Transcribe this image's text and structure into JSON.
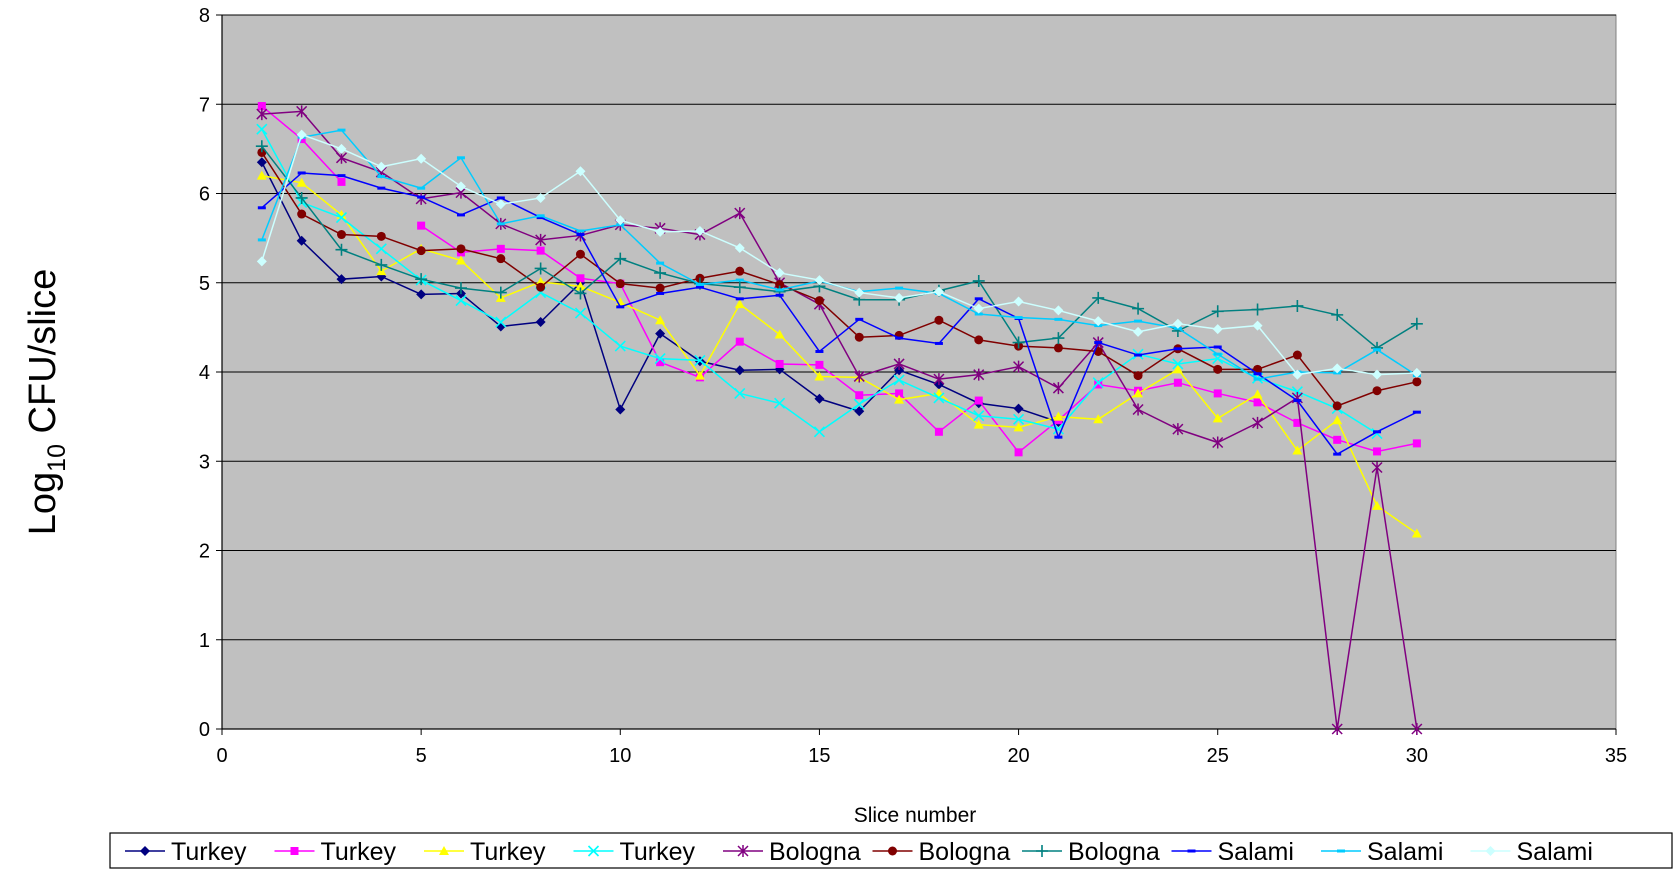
{
  "chart_data": {
    "type": "line",
    "title": "",
    "xlabel": "Slice number",
    "ylabel": {
      "base": "Log",
      "subscript": "10",
      "rest": " CFU/slice"
    },
    "xlim": [
      0,
      35
    ],
    "ylim": [
      0,
      8
    ],
    "x_ticks": [
      0,
      5,
      10,
      15,
      20,
      25,
      30,
      35
    ],
    "y_ticks": [
      0,
      1,
      2,
      3,
      4,
      5,
      6,
      7,
      8
    ],
    "grid": "horizontal",
    "plot_background": "#C0C0C0",
    "legend_position": "bottom",
    "x": [
      1,
      2,
      3,
      4,
      5,
      6,
      7,
      8,
      9,
      10,
      11,
      12,
      13,
      14,
      15,
      16,
      17,
      18,
      19,
      20,
      21,
      22,
      23,
      24,
      25,
      26,
      27,
      28,
      29,
      30
    ],
    "series": [
      {
        "name": "Turkey",
        "color": "#000080",
        "marker": "diamond",
        "values": [
          6.35,
          5.47,
          5.04,
          5.07,
          4.87,
          4.88,
          4.51,
          4.56,
          5.0,
          3.58,
          4.43,
          4.12,
          4.02,
          4.03,
          3.7,
          3.56,
          4.02,
          3.86,
          3.65,
          3.59,
          3.44,
          null,
          null,
          null,
          null,
          null,
          null,
          null,
          null,
          null
        ]
      },
      {
        "name": "Turkey",
        "color": "#FF00FF",
        "marker": "square",
        "values": [
          6.98,
          6.61,
          6.13,
          null,
          5.64,
          5.34,
          5.38,
          5.36,
          5.05,
          4.99,
          4.11,
          3.94,
          4.34,
          4.09,
          4.08,
          3.74,
          3.76,
          3.33,
          3.68,
          3.1,
          3.46,
          3.86,
          3.79,
          3.88,
          3.76,
          3.66,
          3.43,
          3.24,
          3.11,
          3.2
        ]
      },
      {
        "name": "Turkey",
        "color": "#FFFF00",
        "marker": "triangle",
        "values": [
          6.2,
          6.12,
          5.76,
          5.13,
          5.38,
          5.25,
          4.83,
          5.01,
          4.96,
          4.78,
          4.58,
          3.96,
          4.76,
          4.42,
          3.95,
          3.94,
          3.69,
          3.76,
          3.41,
          3.38,
          3.5,
          3.47,
          3.76,
          4.03,
          3.48,
          3.75,
          3.12,
          3.46,
          2.5,
          2.19
        ]
      },
      {
        "name": "Turkey",
        "color": "#00FFFF",
        "marker": "x",
        "values": [
          6.72,
          5.9,
          5.73,
          5.38,
          5.03,
          4.8,
          4.56,
          4.89,
          4.66,
          4.29,
          4.15,
          4.13,
          3.76,
          3.65,
          3.33,
          3.64,
          3.91,
          3.71,
          3.51,
          3.47,
          3.36,
          3.88,
          4.2,
          4.09,
          4.15,
          3.93,
          3.78,
          3.59,
          3.31,
          null
        ]
      },
      {
        "name": "Bologna",
        "color": "#800080",
        "marker": "star",
        "values": [
          6.89,
          6.92,
          6.4,
          6.24,
          5.94,
          6.01,
          5.66,
          5.48,
          5.53,
          5.65,
          5.61,
          5.54,
          5.78,
          5.0,
          4.76,
          3.95,
          4.09,
          3.92,
          3.97,
          4.06,
          3.82,
          4.33,
          3.58,
          3.36,
          3.21,
          3.43,
          3.71,
          0.0,
          2.93,
          0.0
        ]
      },
      {
        "name": "Bologna",
        "color": "#800000",
        "marker": "circle",
        "values": [
          6.46,
          5.77,
          5.54,
          5.52,
          5.36,
          5.38,
          5.27,
          4.95,
          5.32,
          4.99,
          4.94,
          5.05,
          5.13,
          4.98,
          4.8,
          4.39,
          4.41,
          4.58,
          4.36,
          4.29,
          4.27,
          4.23,
          3.96,
          4.26,
          4.03,
          4.03,
          4.19,
          3.62,
          3.79,
          3.89
        ]
      },
      {
        "name": "Bologna",
        "color": "#008080",
        "marker": "plus",
        "values": [
          6.53,
          5.95,
          5.37,
          5.2,
          5.04,
          4.94,
          4.89,
          5.16,
          4.88,
          5.27,
          5.11,
          4.99,
          4.95,
          4.9,
          4.96,
          4.81,
          4.81,
          4.91,
          5.02,
          4.33,
          4.38,
          4.83,
          4.71,
          4.46,
          4.68,
          4.7,
          4.74,
          4.64,
          4.27,
          4.54
        ]
      },
      {
        "name": "Salami",
        "color": "#0000FF",
        "marker": "dash",
        "values": [
          5.84,
          6.23,
          6.2,
          6.06,
          5.96,
          5.76,
          5.95,
          5.73,
          5.54,
          4.73,
          4.88,
          4.95,
          4.82,
          4.86,
          4.23,
          4.59,
          4.38,
          4.32,
          4.82,
          4.6,
          3.27,
          4.33,
          4.19,
          4.26,
          4.28,
          3.98,
          3.68,
          3.08,
          3.33,
          3.55
        ]
      },
      {
        "name": "Salami",
        "color": "#00CCFF",
        "marker": "dash",
        "values": [
          5.48,
          6.63,
          6.71,
          6.19,
          6.06,
          6.4,
          5.66,
          5.75,
          5.58,
          5.65,
          5.22,
          4.98,
          5.03,
          4.92,
          5.02,
          4.9,
          4.94,
          4.88,
          4.65,
          4.61,
          4.59,
          4.52,
          4.57,
          4.49,
          4.2,
          3.92,
          4.0,
          3.99,
          4.25,
          3.96
        ]
      },
      {
        "name": "Salami",
        "color": "#CCFFFF",
        "marker": "diamond",
        "values": [
          5.24,
          6.66,
          6.5,
          6.3,
          6.39,
          6.08,
          5.88,
          5.95,
          6.25,
          5.7,
          5.57,
          5.58,
          5.39,
          5.11,
          5.03,
          4.89,
          4.83,
          4.9,
          4.71,
          4.79,
          4.69,
          4.57,
          4.45,
          4.54,
          4.48,
          4.52,
          3.97,
          4.04,
          3.97,
          3.99
        ]
      }
    ]
  }
}
